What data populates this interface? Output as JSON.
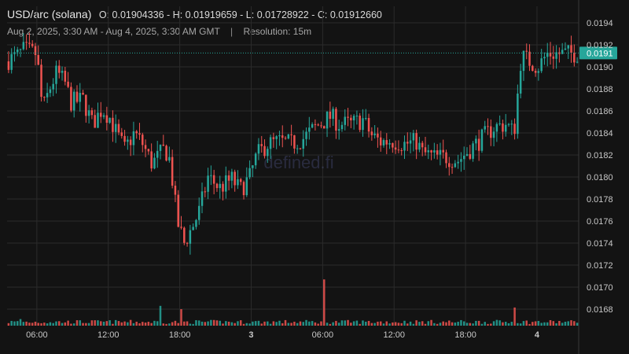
{
  "header": {
    "symbol": "USD/arc (solana)",
    "ohlc": "O: 0.01904336 - H: 0.01919659 - L: 0.01728922 - C: 0.01912660",
    "range": "Aug 2, 2025, 3:30 AM - Aug 4, 2025, 3:30 AM GMT",
    "separator": "|",
    "resolution": "Resolution: 15m"
  },
  "watermark": "defined.fi",
  "colors": {
    "background": "#131313",
    "up": "#26a69a",
    "down": "#ef5350",
    "grid": "#2b2b2b",
    "axis_text": "#c8c8c8",
    "price_tag": "#26a69a"
  },
  "chart_data": {
    "type": "candlestick",
    "title": "USD/arc (solana)",
    "xlabel": "",
    "ylabel": "",
    "y_range": [
      0.01665,
      0.01955
    ],
    "y_ticks": [
      "0.0194",
      "0.0192",
      "0.0190",
      "0.0188",
      "0.0186",
      "0.0184",
      "0.0182",
      "0.0180",
      "0.0178",
      "0.0176",
      "0.0174",
      "0.0172",
      "0.0170",
      "0.0168"
    ],
    "x_ticks": [
      "06:00",
      "12:00",
      "18:00",
      "3",
      "06:00",
      "12:00",
      "18:00",
      "4"
    ],
    "x_tick_hours": [
      6,
      12,
      18,
      24,
      30,
      36,
      42,
      48
    ],
    "x_range_hours": [
      3.5,
      51.5
    ],
    "current_price": "0.0191",
    "current_price_value": 0.019126,
    "grid": true,
    "volume_panel": true,
    "path_points": [
      [
        3.5,
        0.01905
      ],
      [
        4.5,
        0.0191
      ],
      [
        5.0,
        0.01915
      ],
      [
        6.0,
        0.01912
      ],
      [
        6.3,
        0.01895
      ],
      [
        6.6,
        0.0186
      ],
      [
        7.2,
        0.0188
      ],
      [
        7.8,
        0.01895
      ],
      [
        8.5,
        0.01885
      ],
      [
        9.0,
        0.01868
      ],
      [
        10.0,
        0.0187
      ],
      [
        10.8,
        0.01848
      ],
      [
        11.6,
        0.01862
      ],
      [
        12.2,
        0.01855
      ],
      [
        12.8,
        0.0184
      ],
      [
        13.5,
        0.01825
      ],
      [
        14.3,
        0.0184
      ],
      [
        15.0,
        0.0183
      ],
      [
        15.8,
        0.01812
      ],
      [
        16.8,
        0.01825
      ],
      [
        17.2,
        0.0182
      ],
      [
        17.6,
        0.0179
      ],
      [
        17.9,
        0.0176
      ],
      [
        18.5,
        0.0174
      ],
      [
        19.2,
        0.01755
      ],
      [
        19.8,
        0.0177
      ],
      [
        20.5,
        0.018
      ],
      [
        21.5,
        0.0179
      ],
      [
        22.5,
        0.01798
      ],
      [
        23.2,
        0.01788
      ],
      [
        24.0,
        0.018
      ],
      [
        24.6,
        0.0182
      ],
      [
        25.5,
        0.0183
      ],
      [
        26.5,
        0.01832
      ],
      [
        27.5,
        0.0183
      ],
      [
        28.5,
        0.01835
      ],
      [
        29.5,
        0.01845
      ],
      [
        30.8,
        0.01855
      ],
      [
        31.5,
        0.01848
      ],
      [
        32.5,
        0.01848
      ],
      [
        33.5,
        0.01852
      ],
      [
        34.2,
        0.01838
      ],
      [
        35.0,
        0.01832
      ],
      [
        36.0,
        0.01833
      ],
      [
        37.0,
        0.0183
      ],
      [
        38.0,
        0.01832
      ],
      [
        38.5,
        0.01822
      ],
      [
        39.5,
        0.01818
      ],
      [
        40.5,
        0.01818
      ],
      [
        41.5,
        0.01815
      ],
      [
        42.5,
        0.01825
      ],
      [
        43.5,
        0.01835
      ],
      [
        44.5,
        0.01845
      ],
      [
        45.5,
        0.01848
      ],
      [
        46.2,
        0.0184
      ],
      [
        46.5,
        0.01875
      ],
      [
        46.8,
        0.0191
      ],
      [
        47.5,
        0.01905
      ],
      [
        48.2,
        0.019
      ],
      [
        49.0,
        0.01912
      ]
    ],
    "volume_spikes": [
      [
        30.0,
        0.28
      ],
      [
        16.2,
        0.12
      ],
      [
        18.0,
        0.1
      ],
      [
        46.0,
        0.11
      ],
      [
        4.5,
        0.04
      ]
    ]
  }
}
